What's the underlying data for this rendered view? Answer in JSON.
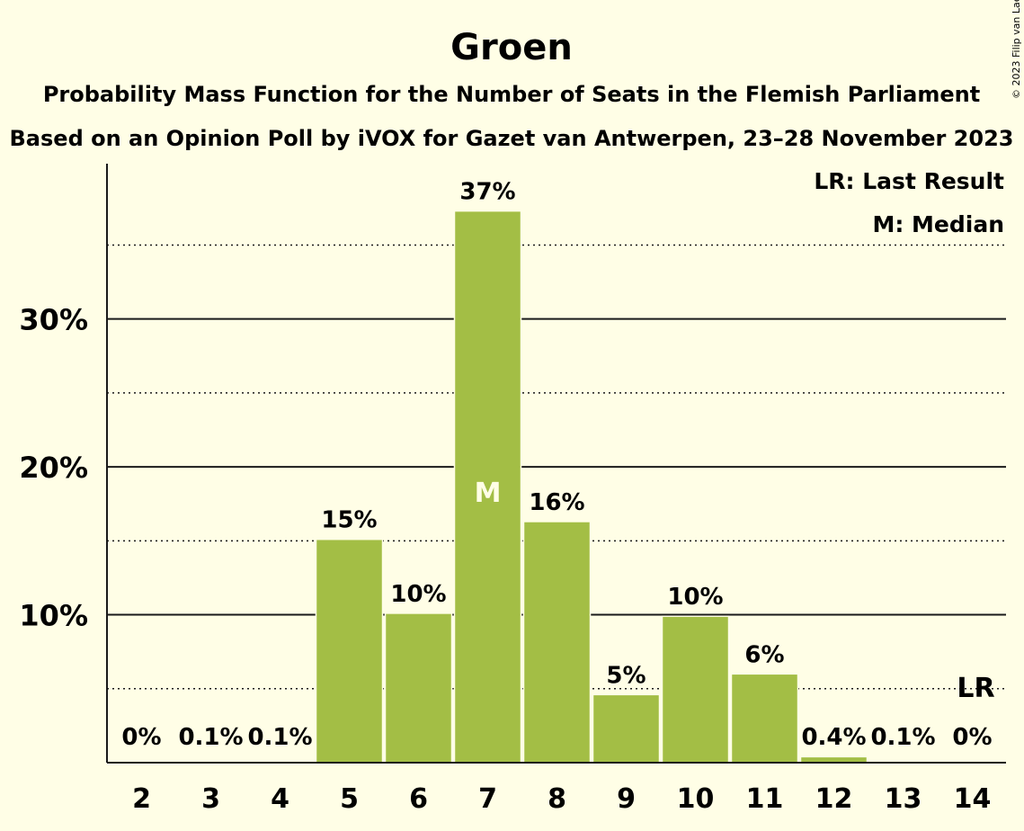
{
  "chart_data": {
    "type": "bar",
    "title": "Groen",
    "subtitle": "Probability Mass Function for the Number of Seats in the Flemish Parliament",
    "subtitle2": "Based on an Opinion Poll by iVOX for Gazet van Antwerpen, 23–28 November 2023",
    "copyright": "© 2023 Filip van Laenen",
    "categories": [
      "2",
      "3",
      "4",
      "5",
      "6",
      "7",
      "8",
      "9",
      "10",
      "11",
      "12",
      "13",
      "14"
    ],
    "values": [
      0,
      0.05,
      0.05,
      15.1,
      10.1,
      37.3,
      16.3,
      4.6,
      9.9,
      6.0,
      0.4,
      0.05,
      0
    ],
    "value_labels": [
      "0%",
      "0.1%",
      "0.1%",
      "15%",
      "10%",
      "37%",
      "16%",
      "5%",
      "10%",
      "6%",
      "0.4%",
      "0.1%",
      "0%"
    ],
    "ylim": [
      0,
      40.5
    ],
    "yticks": [
      10,
      20,
      30
    ],
    "ytick_labels": [
      "10%",
      "20%",
      "30%"
    ],
    "minor_grid": [
      5,
      15,
      25,
      35
    ],
    "bar_color": "#A3BE45",
    "median_category": "7",
    "median_marker": "M",
    "last_result_category": "14",
    "last_result_marker": "LR",
    "legend": [
      "LR: Last Result",
      "M: Median"
    ],
    "legend_position": "top-right"
  }
}
